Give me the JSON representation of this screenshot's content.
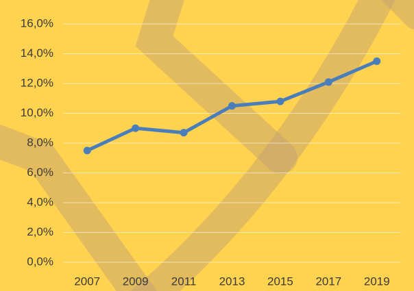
{
  "chart_data": {
    "type": "line",
    "categories": [
      "2007",
      "2009",
      "2011",
      "2013",
      "2015",
      "2017",
      "2019"
    ],
    "series": [
      {
        "color": "#4a7ebb",
        "values": [
          7.5,
          9.0,
          8.7,
          10.5,
          10.8,
          12.1,
          13.5
        ]
      }
    ],
    "ylim": [
      0,
      16
    ],
    "yticks": [
      {
        "value": 0,
        "label": "0,0%"
      },
      {
        "value": 2,
        "label": "2,0%"
      },
      {
        "value": 4,
        "label": "4,0%"
      },
      {
        "value": 6,
        "label": "6,0%"
      },
      {
        "value": 8,
        "label": "8,0%"
      },
      {
        "value": 10,
        "label": "10,0%"
      },
      {
        "value": 12,
        "label": "12,0%"
      },
      {
        "value": 14,
        "label": "14,0%"
      },
      {
        "value": 16,
        "label": "16,0%"
      }
    ],
    "grid": true
  }
}
